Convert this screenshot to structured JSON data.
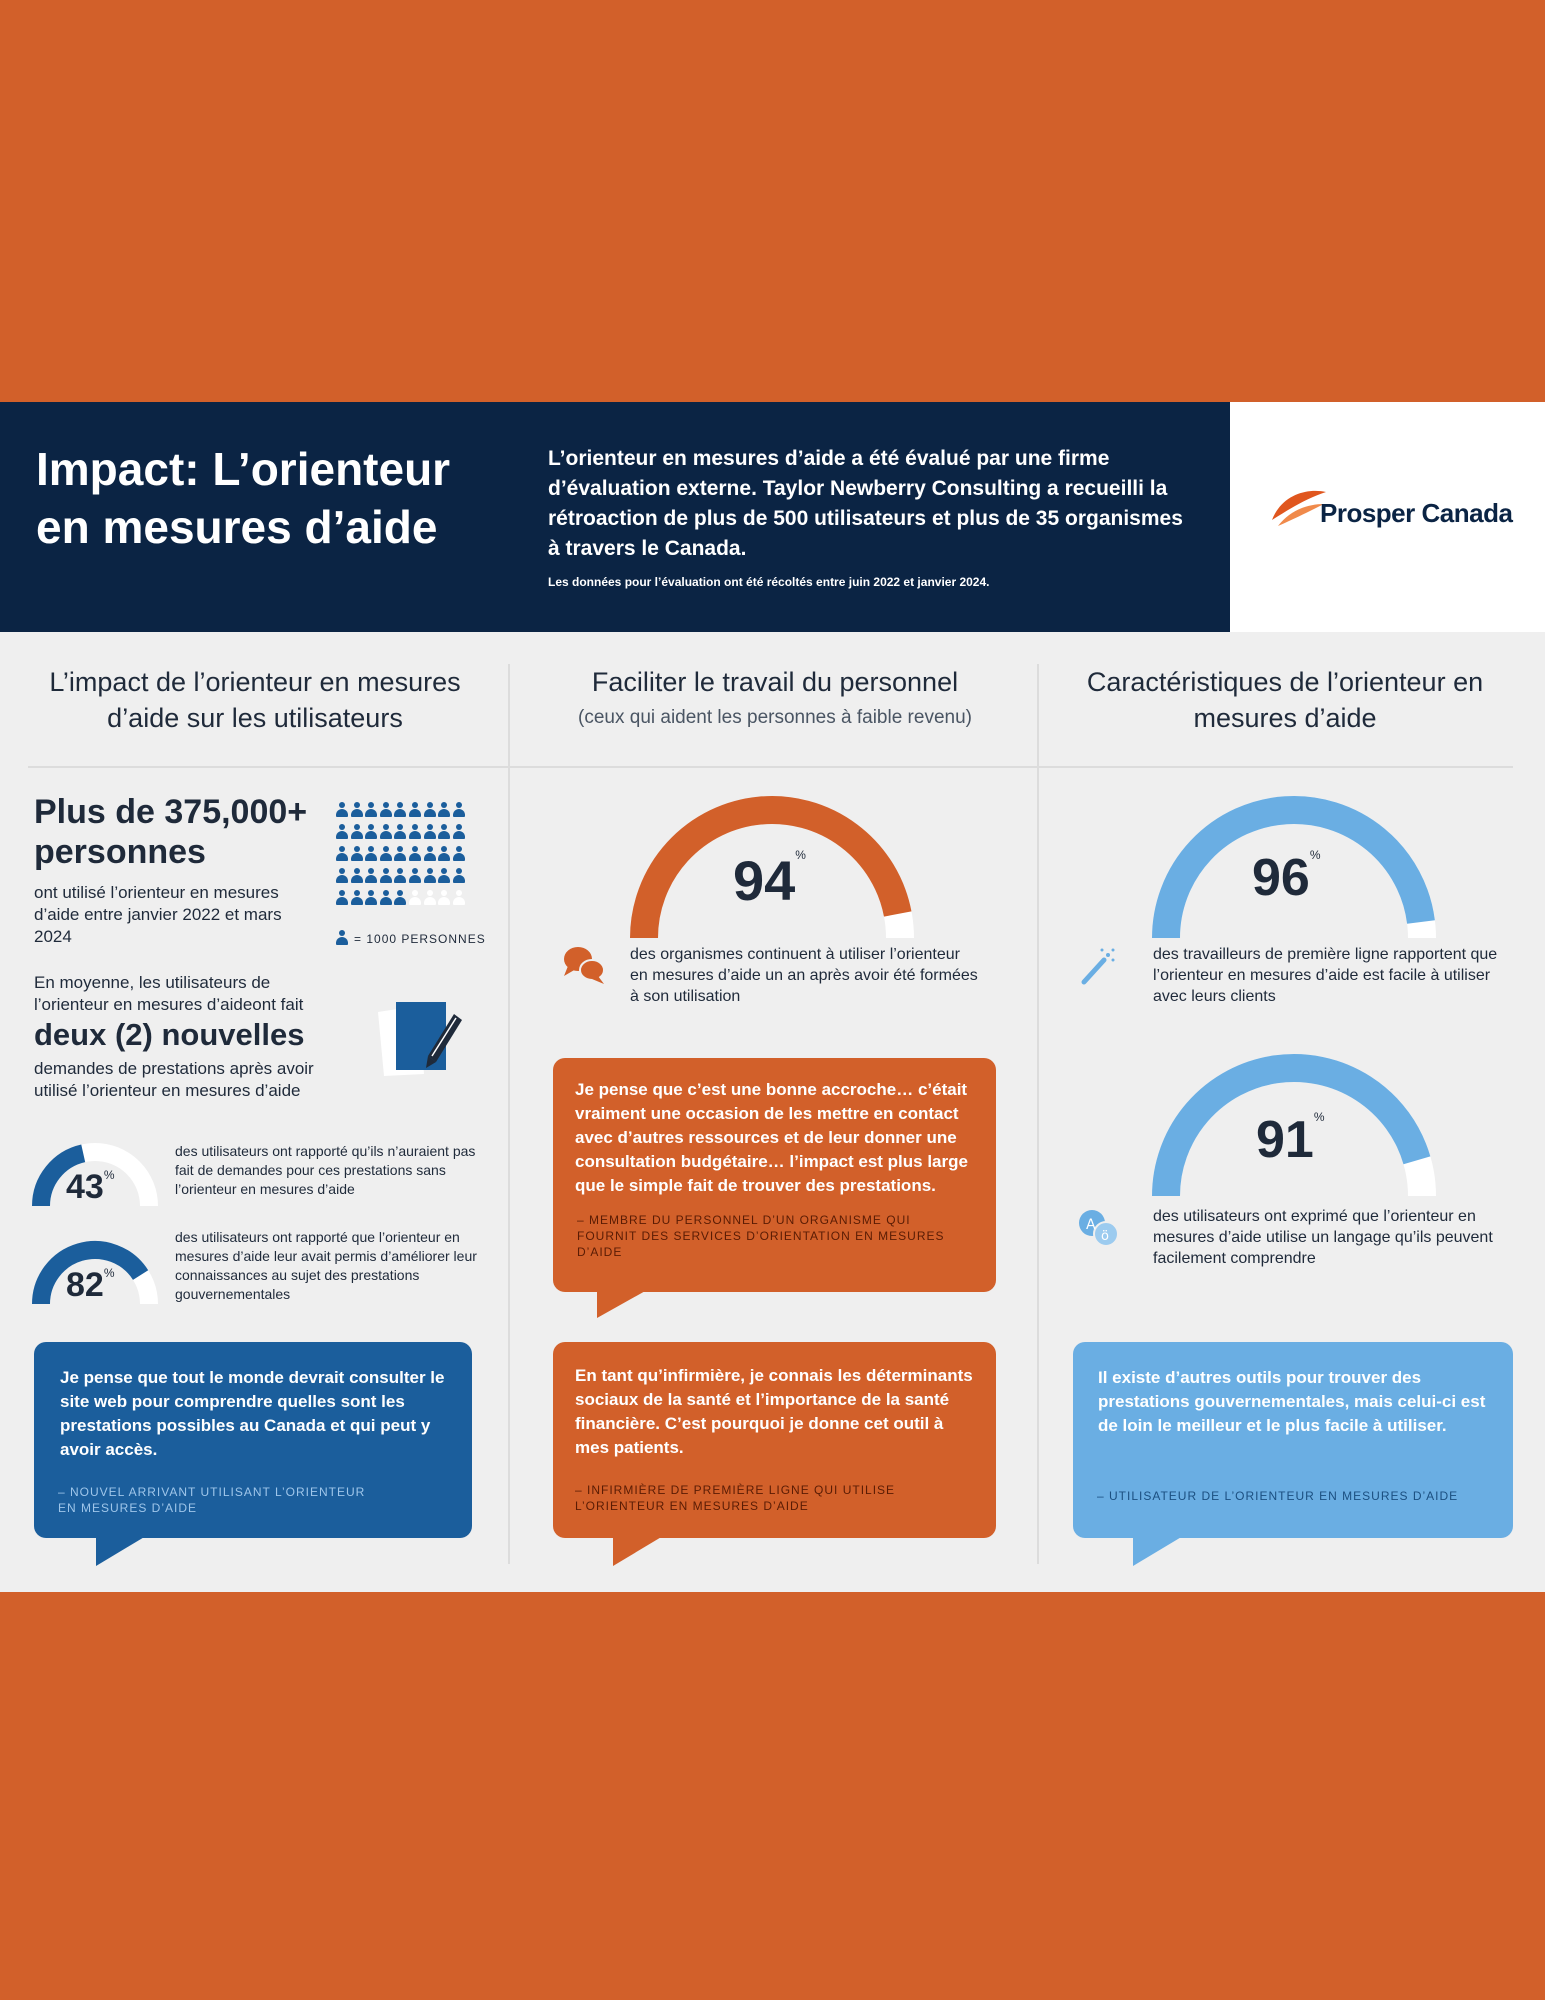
{
  "header": {
    "title": "Impact: L’orienteur en mesures d’aide",
    "intro": "L’orienteur en mesures d’aide a été évalué par une firme d’évaluation externe. Taylor Newberry Consulting a recueilli la rétroaction de plus de 500 utilisateurs et plus de 35 organismes à travers le Canada.",
    "note": "Les données pour l’évaluation ont été récoltés entre juin 2022 et janvier 2024.",
    "logo_text": "Prosper Canada"
  },
  "columns": [
    {
      "title": "L’impact de l’orienteur en mesures d’aide sur les utilisateurs"
    },
    {
      "title": "Faciliter le travail du personnel",
      "subtitle": "(ceux qui aident les personnes à faible revenu)"
    },
    {
      "title": "Caractéristiques de l’orienteur en mesures d’aide"
    }
  ],
  "users": {
    "headline": "Plus de 375,000+ personnes",
    "headline_desc": "ont utilisé l’orienteur en mesures d’aide entre janvier 2022 et mars 2024",
    "legend": "= 1000 PERSONNES",
    "people_filled_fraction": 0.9,
    "average_intro": "En moyenne, les utilisateurs de l’orienteur en mesures d’aideont fait",
    "average_big": "deux (2) nouvelles",
    "average_desc": "demandes de prestations après avoir utilisé l’orienteur en mesures d’aide",
    "stat1": {
      "value": "43",
      "pct": 43,
      "desc": "des utilisateurs ont rapporté qu’ils n’auraient pas fait de demandes pour ces prestations sans l’orienteur en mesures d’aide"
    },
    "stat2": {
      "value": "82",
      "pct": 82,
      "desc": "des utilisateurs ont rapporté que l’orienteur en mesures d’aide leur avait permis d’améliorer leur connaissances au sujet des prestations gouvernementales"
    },
    "quote": "Je pense que tout le monde devrait consulter le site web pour comprendre quelles sont les prestations possibles au Canada et qui peut y avoir accès.",
    "quote_attr": "– NOUVEL ARRIVANT UTILISANT L’ORIENTEUR EN MESURES D’AIDE"
  },
  "staff": {
    "stat": {
      "value": "94",
      "pct": 94,
      "desc": "des organismes continuent à utiliser l’orienteur en mesures d’aide un an après avoir été formées à son utilisation"
    },
    "quote1": "Je pense que c’est une bonne accroche… c’était vraiment une occasion de les mettre en contact avec d’autres ressources et de leur donner une consultation budgétaire… l’impact est plus large que le simple fait de trouver des prestations.",
    "quote1_attr": "– MEMBRE DU PERSONNEL D’UN ORGANISME QUI FOURNIT DES SERVICES D’ORIENTATION EN MESURES D’AIDE",
    "quote2": "En tant qu’infirmière, je connais les déterminants sociaux de la santé et l’importance de la santé financière. C’est pourquoi je donne cet outil à mes patients.",
    "quote2_attr": "– INFIRMIÈRE DE PREMIÈRE LIGNE QUI UTILISE L’ORIENTEUR EN MESURES D’AIDE"
  },
  "features": {
    "stat1": {
      "value": "96",
      "pct": 96,
      "desc": "des travailleurs de première ligne rapportent que l’orienteur en mesures d’aide est facile à utiliser avec leurs clients"
    },
    "stat2": {
      "value": "91",
      "pct": 91,
      "desc": "des utilisateurs ont exprimé que l’orienteur en mesures d’aide utilise un langage qu’ils peuvent facilement comprendre"
    },
    "quote": "Il existe d’autres outils pour trouver des prestations gouvernementales, mais celui-ci est de loin le meilleur et le plus facile à utiliser.",
    "quote_attr": "– UTILISATEUR DE L’ORIENTEUR EN MESURES D’AIDE"
  },
  "percent_sign": "%",
  "colors": {
    "orange": "#d2602a",
    "navy": "#0b2444",
    "blue": "#1b5e9c",
    "light_blue": "#6aaee3",
    "panel": "#efefef"
  }
}
